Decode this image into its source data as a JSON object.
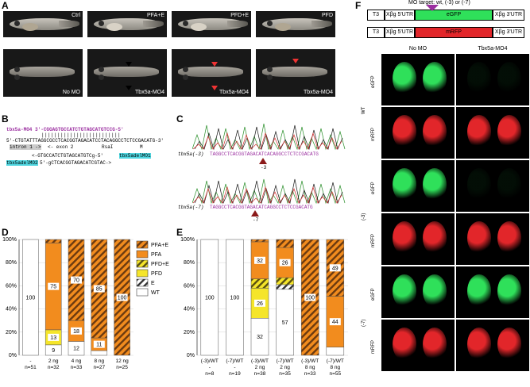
{
  "panels": {
    "A": "A",
    "B": "B",
    "C": "C",
    "D": "D",
    "E": "E",
    "F": "F"
  },
  "panelA": {
    "top_labels": [
      "Ctrl",
      "PFA+E",
      "PFD+E",
      "PFD"
    ],
    "bottom_labels": [
      "No MO",
      "Tbx5a-MO4",
      "Tbx5a-MO4",
      "Tbx5a-MO4"
    ]
  },
  "panelB": {
    "mo4": "tbx5a-MO4",
    "mo4_seq": "3'-CGGAGTGCCATCTGTAGCATGTCCG-5'",
    "genomic": "5'-CTGTATTTAGGCGCCTCACGGTAGACATCCTACAGGCCTCTCCGACATG-3'",
    "intron": "intron 1 ->",
    "exon": "<- exon 2",
    "rsai": "RsaI",
    "met": "M",
    "del1": "tbx5adelMO1",
    "del1_seq": "<-GTGCCATCTGTAGCATGTCg-5'",
    "del2": "tbx5adelMO2",
    "del2_seq": "5'-gCTCACGGTAGACATCGTAC->"
  },
  "panelC": {
    "row1_label": "tbx5a(-3)",
    "row1_seq": "TAGGCCTCACGGTAGACATCACAGGCCTCTCCGACATG",
    "row1_mark": "-3",
    "row2_label": "tbx5a(-7)",
    "row2_seq": "TAGGCCTCACGGTAGACATCAGGCCTCTCCGACATG",
    "row2_mark": "-7"
  },
  "legend": [
    {
      "label": "PFA+E",
      "color": "#f28c1e",
      "hatch": true
    },
    {
      "label": "PFA",
      "color": "#f28c1e",
      "hatch": false
    },
    {
      "label": "PFD+E",
      "color": "#f5e52a",
      "hatch": true
    },
    {
      "label": "PFD",
      "color": "#f5e52a",
      "hatch": false
    },
    {
      "label": "E",
      "color": "#ffffff",
      "hatch": true
    },
    {
      "label": "WT",
      "color": "#ffffff",
      "hatch": false
    }
  ],
  "chart_data": [
    {
      "type": "bar",
      "panel": "D",
      "stacked": true,
      "ylim": [
        0,
        100
      ],
      "yticks": [
        "0%",
        "20%",
        "40%",
        "60%",
        "80%",
        "100%"
      ],
      "categories": [
        "-",
        "2 ng",
        "4 ng",
        "8 ng",
        "12 ng"
      ],
      "n": [
        "n=51",
        "n=32",
        "n=33",
        "n=27",
        "n=25"
      ],
      "series": [
        {
          "name": "WT",
          "values": [
            100,
            9,
            12,
            4,
            0
          ]
        },
        {
          "name": "E",
          "values": [
            0,
            0,
            0,
            0,
            0
          ]
        },
        {
          "name": "PFD",
          "values": [
            0,
            13,
            0,
            0,
            0
          ]
        },
        {
          "name": "PFD+E",
          "values": [
            0,
            0,
            0,
            0,
            0
          ]
        },
        {
          "name": "PFA",
          "values": [
            0,
            75,
            18,
            11,
            0
          ]
        },
        {
          "name": "PFA+E",
          "values": [
            0,
            3,
            70,
            85,
            100
          ]
        }
      ],
      "labels": [
        {
          "cat": 0,
          "text": "100"
        },
        {
          "cat": 1,
          "text": "9",
          "series": "WT"
        },
        {
          "cat": 1,
          "text": "13",
          "series": "PFD"
        },
        {
          "cat": 1,
          "text": "75",
          "series": "PFA"
        },
        {
          "cat": 2,
          "text": "12",
          "series": "WT"
        },
        {
          "cat": 2,
          "text": "18",
          "series": "PFA"
        },
        {
          "cat": 2,
          "text": "70",
          "series": "PFA+E"
        },
        {
          "cat": 3,
          "text": "11",
          "series": "PFA"
        },
        {
          "cat": 3,
          "text": "85",
          "series": "PFA+E"
        },
        {
          "cat": 4,
          "text": "100",
          "series": "PFA+E"
        }
      ]
    },
    {
      "type": "bar",
      "panel": "E",
      "stacked": true,
      "ylim": [
        0,
        100
      ],
      "yticks": [
        "0%",
        "20%",
        "40%",
        "60%",
        "80%",
        "100%"
      ],
      "categories": [
        "(-3)/WT",
        "(-7)/WT",
        "(-3)/WT",
        "(-7)/WT",
        "(-3)/WT",
        "(-7)/WT"
      ],
      "doses": [
        "-",
        "-",
        "2 ng",
        "2 ng",
        "8 ng",
        "8 ng"
      ],
      "n": [
        "n=8",
        "n=19",
        "n=38",
        "n=35",
        "n=33",
        "n=55"
      ],
      "series": [
        {
          "name": "WT",
          "values": [
            100,
            100,
            32,
            57,
            0,
            7
          ]
        },
        {
          "name": "E",
          "values": [
            0,
            0,
            0,
            4,
            0,
            0
          ]
        },
        {
          "name": "PFD",
          "values": [
            0,
            0,
            26,
            0,
            0,
            0
          ]
        },
        {
          "name": "PFD+E",
          "values": [
            0,
            0,
            8,
            6,
            0,
            0
          ]
        },
        {
          "name": "PFA",
          "values": [
            0,
            0,
            32,
            26,
            0,
            44
          ]
        },
        {
          "name": "PFA+E",
          "values": [
            0,
            0,
            2,
            7,
            100,
            49
          ]
        }
      ],
      "labels": [
        {
          "cat": 0,
          "text": "100"
        },
        {
          "cat": 1,
          "text": "100"
        },
        {
          "cat": 2,
          "text": "32",
          "series": "WT"
        },
        {
          "cat": 2,
          "text": "26",
          "series": "PFD"
        },
        {
          "cat": 2,
          "text": "32",
          "series": "PFA"
        },
        {
          "cat": 3,
          "text": "57",
          "series": "WT"
        },
        {
          "cat": 3,
          "text": "26",
          "series": "PFA"
        },
        {
          "cat": 4,
          "text": "100",
          "series": "PFA+E"
        },
        {
          "cat": 5,
          "text": "44",
          "series": "PFA"
        },
        {
          "cat": 5,
          "text": "49",
          "series": "PFA+E"
        }
      ]
    }
  ],
  "panelF": {
    "target": "MO target: wt, (-3) or (-7)",
    "t3": "T3",
    "utr5": "Xβg 5'UTR",
    "egfp": "eGFP",
    "mrfp": "mRFP",
    "utr3": "Xβg 3'UTR",
    "col1": "No MO",
    "col2": "Tbx5a-MO4",
    "groups": [
      "WT",
      "(-3)",
      "(-7)"
    ],
    "rows": [
      "eGFP",
      "mRFP"
    ],
    "colors": {
      "green": "#2fe05a",
      "red": "#e2262a"
    }
  }
}
